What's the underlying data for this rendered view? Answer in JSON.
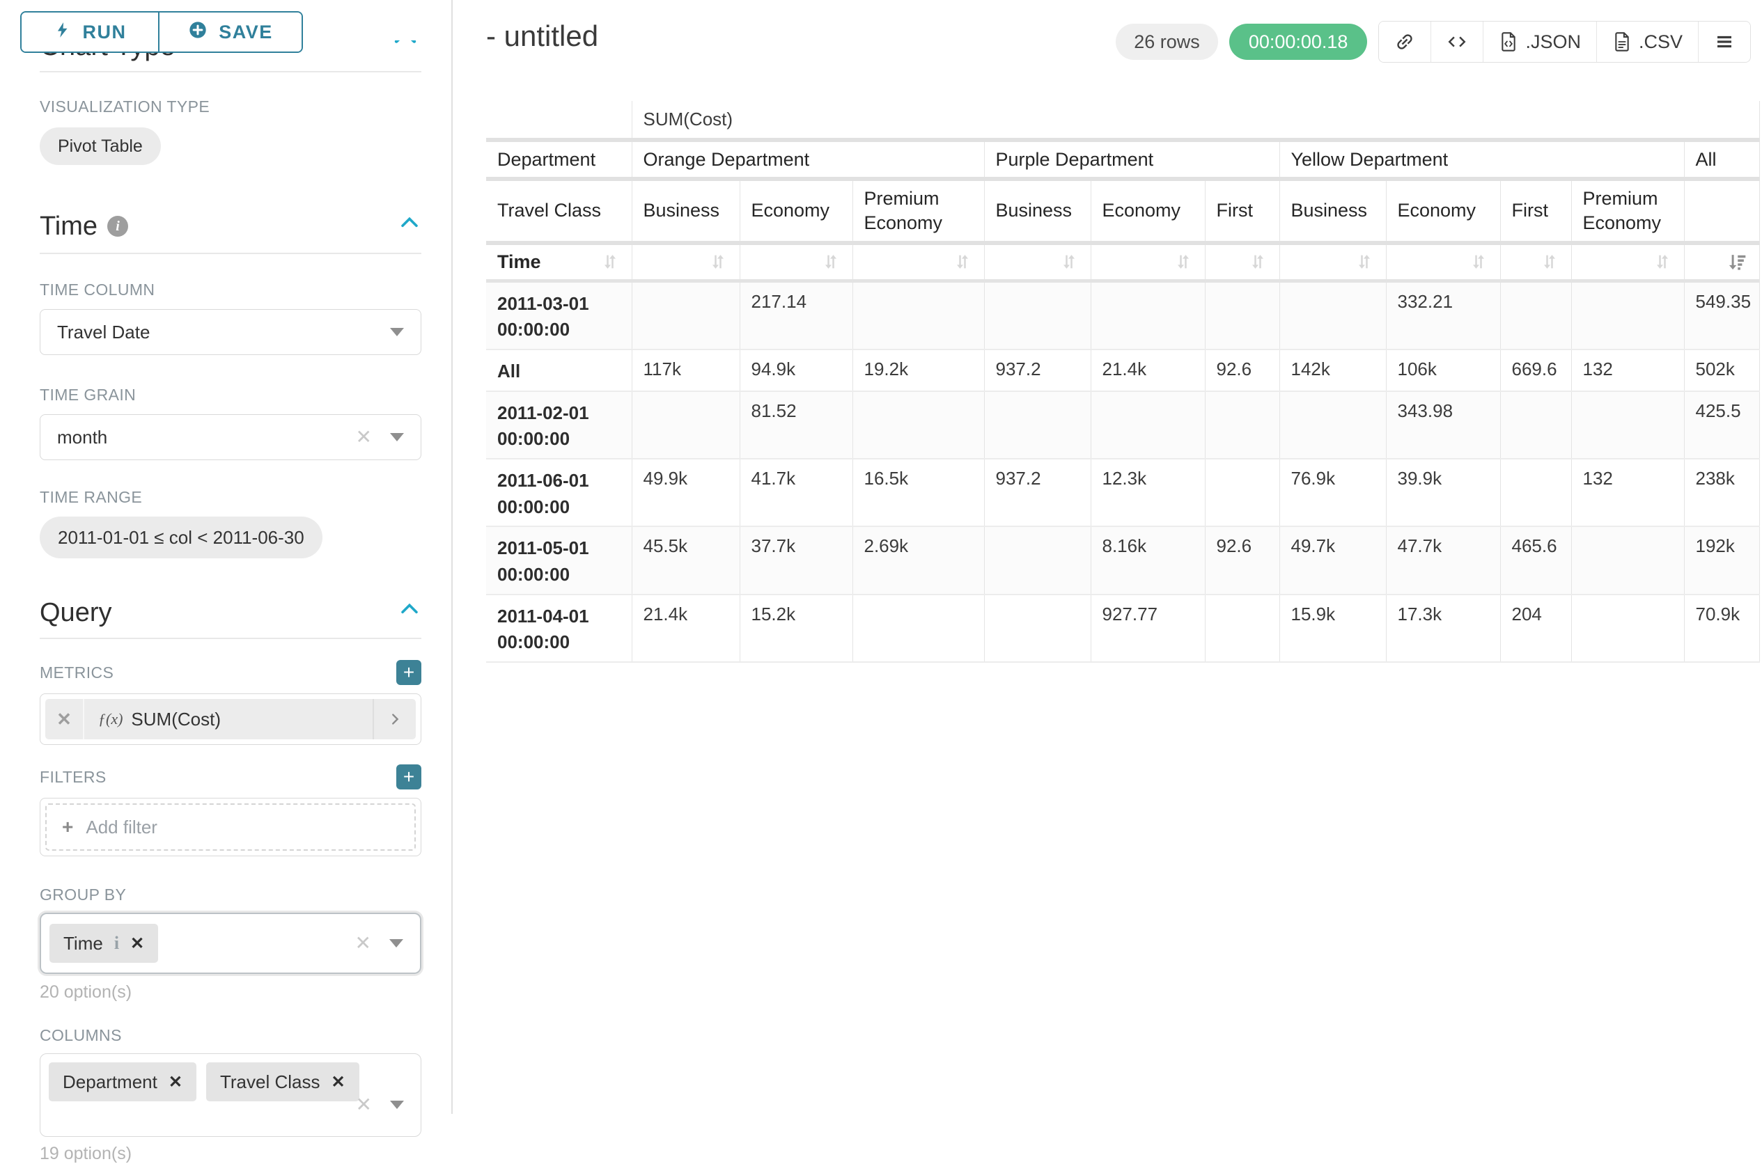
{
  "panel": {
    "run_label": "RUN",
    "save_label": "SAVE",
    "section_chart_type": "Chart Type",
    "viz_type_label": "VISUALIZATION TYPE",
    "viz_type_value": "Pivot Table",
    "time_section": "Time",
    "time_column_label": "TIME COLUMN",
    "time_column_value": "Travel Date",
    "time_grain_label": "TIME GRAIN",
    "time_grain_value": "month",
    "time_range_label": "TIME RANGE",
    "time_range_value": "2011-01-01 ≤ col < 2011-06-30",
    "query_section": "Query",
    "metrics_label": "METRICS",
    "metric_fx": "ƒ(x)",
    "metric_value": "SUM(Cost)",
    "filters_label": "FILTERS",
    "add_filter_label": "Add filter",
    "group_by_label": "GROUP BY",
    "group_by_chips": [
      "Time"
    ],
    "group_by_options": "20 option(s)",
    "columns_label": "COLUMNS",
    "columns_chips": [
      "Department",
      "Travel Class"
    ],
    "columns_options": "19 option(s)"
  },
  "header": {
    "title": "- untitled",
    "row_count": "26 rows",
    "timer": "00:00:00.18",
    "export_json_label": ".JSON",
    "export_csv_label": ".CSV",
    "colors": {
      "timer_bg": "#5ac189",
      "accent": "#1fa8c9",
      "button_teal": "#30809b",
      "plus_teal": "#3d8296"
    }
  },
  "table": {
    "metric_header": "SUM(Cost)",
    "department_label": "Department",
    "groups": [
      {
        "label": "Orange Department",
        "span": 3
      },
      {
        "label": "Purple Department",
        "span": 3
      },
      {
        "label": "Yellow Department",
        "span": 4
      },
      {
        "label": "All",
        "span": 1
      }
    ],
    "travel_class_label": "Travel Class",
    "classes": [
      "Business",
      "Economy",
      "Premium Economy",
      "Business",
      "Economy",
      "First",
      "Business",
      "Economy",
      "First",
      "Premium Economy",
      ""
    ],
    "sort_label": "Time",
    "rows": [
      {
        "label": "2011-03-01 00:00:00",
        "values": [
          "",
          "217.14",
          "",
          "",
          "",
          "",
          "",
          "332.21",
          "",
          "",
          "549.35"
        ]
      },
      {
        "label": "All",
        "values": [
          "117k",
          "94.9k",
          "19.2k",
          "937.2",
          "21.4k",
          "92.6",
          "142k",
          "106k",
          "669.6",
          "132",
          "502k"
        ]
      },
      {
        "label": "2011-02-01 00:00:00",
        "values": [
          "",
          "81.52",
          "",
          "",
          "",
          "",
          "",
          "343.98",
          "",
          "",
          "425.5"
        ]
      },
      {
        "label": "2011-06-01 00:00:00",
        "values": [
          "49.9k",
          "41.7k",
          "16.5k",
          "937.2",
          "12.3k",
          "",
          "76.9k",
          "39.9k",
          "",
          "132",
          "238k"
        ]
      },
      {
        "label": "2011-05-01 00:00:00",
        "values": [
          "45.5k",
          "37.7k",
          "2.69k",
          "",
          "8.16k",
          "92.6",
          "49.7k",
          "47.7k",
          "465.6",
          "",
          "192k"
        ]
      },
      {
        "label": "2011-04-01 00:00:00",
        "values": [
          "21.4k",
          "15.2k",
          "",
          "",
          "927.77",
          "",
          "15.9k",
          "17.3k",
          "204",
          "",
          "70.9k"
        ]
      }
    ]
  }
}
